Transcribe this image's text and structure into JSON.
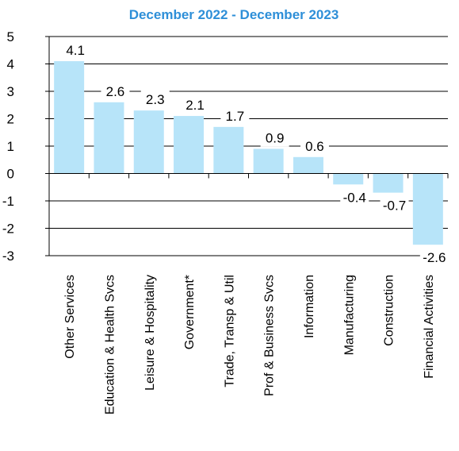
{
  "chart_data": {
    "type": "bar",
    "title": "December 2022 - December 2023",
    "xlabel": "",
    "ylabel": "",
    "ylim": [
      -3,
      5
    ],
    "yticks": [
      5,
      4,
      3,
      2,
      1,
      0,
      -1,
      -2,
      -3
    ],
    "grid": true,
    "legend": "none",
    "categories": [
      "Other Services",
      "Education & Health Svcs",
      "Leisure & Hospitality",
      "Government*",
      "Trade, Transp & Util",
      "Prof & Business Svcs",
      "Information",
      "Manufacturing",
      "Construction",
      "Financial Activities"
    ],
    "values": [
      4.1,
      2.6,
      2.3,
      2.1,
      1.7,
      0.9,
      0.6,
      -0.4,
      -0.7,
      -2.6
    ],
    "value_labels": [
      "4.1",
      "2.6",
      "2.3",
      "2.1",
      "1.7",
      "0.9",
      "0.6",
      "-0.4",
      "-0.7",
      "-2.6"
    ],
    "colors": {
      "bar": "#B7E4F9",
      "title": "#2E8FD8",
      "grid": "#000000",
      "text": "#000000"
    }
  }
}
